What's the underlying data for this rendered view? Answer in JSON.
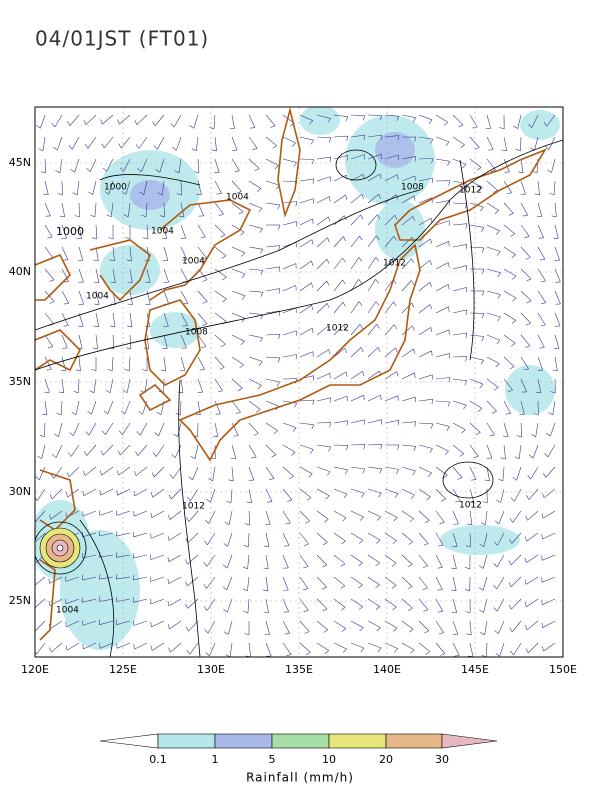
{
  "title": "04/01JST (FT01)",
  "lat_labels": [
    "45N",
    "40N",
    "35N",
    "30N",
    "25N"
  ],
  "lon_labels": [
    "120E",
    "125E",
    "130E",
    "135E",
    "140E",
    "145E",
    "150E"
  ],
  "isobar_labels": [
    "1000",
    "1004",
    "1008",
    "1012",
    "1000",
    "1004",
    "1004",
    "1012",
    "1004",
    "1008",
    "1012",
    "1012",
    "1012",
    "1004"
  ],
  "legend": {
    "title": "Rainfall (mm/h)",
    "ticks": [
      "0.1",
      "1",
      "5",
      "10",
      "20",
      "30"
    ]
  }
}
